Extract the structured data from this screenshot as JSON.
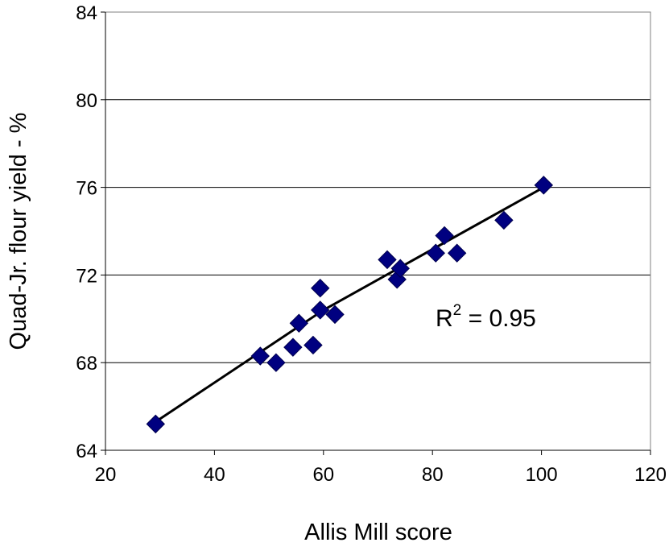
{
  "chart_data": {
    "type": "scatter",
    "x_label": "Allis Mill score",
    "y_label": "Quad-Jr. flour yield - %",
    "xlim": [
      20,
      120
    ],
    "xticks": [
      20,
      40,
      60,
      80,
      100,
      120
    ],
    "ylim": [
      64,
      84
    ],
    "yticks": [
      64,
      68,
      72,
      76,
      80,
      84
    ],
    "grid": true,
    "series": [
      {
        "color": "#000080",
        "x": [
          29.2,
          48.4,
          51.3,
          54.4,
          55.5,
          58.1,
          59.4,
          59.4,
          62.1,
          71.7,
          73.5,
          74.1,
          80.6,
          82.2,
          84.5,
          93.1,
          100.4
        ],
        "values": [
          65.2,
          68.3,
          68.0,
          68.7,
          69.8,
          68.8,
          70.4,
          71.4,
          70.2,
          72.7,
          71.8,
          72.3,
          73.0,
          73.8,
          73.0,
          74.5,
          76.1
        ]
      }
    ],
    "trendline": {
      "color": "#000000",
      "x": [
        29.2,
        60,
        100.4
      ],
      "values": [
        65.3,
        70.4,
        76.0
      ]
    },
    "annotation": {
      "base": "R",
      "sup": "2",
      "rest": " = 0.95"
    }
  }
}
